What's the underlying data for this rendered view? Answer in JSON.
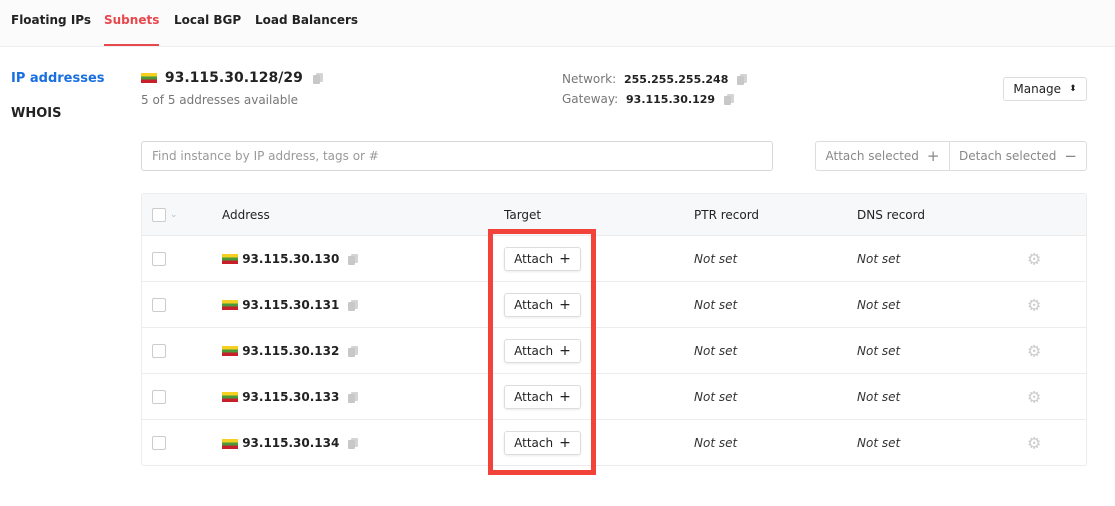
{
  "tabs": [
    {
      "label": "Floating IPs"
    },
    {
      "label": "Subnets",
      "active": true
    },
    {
      "label": "Local BGP"
    },
    {
      "label": "Load Balancers"
    }
  ],
  "sidebar": {
    "items": [
      {
        "label": "IP addresses",
        "active": true
      },
      {
        "label": "WHOIS"
      }
    ]
  },
  "subnet": {
    "cidr": "93.115.30.128/29",
    "availability": "5 of 5 addresses available",
    "network_label": "Network:",
    "network": "255.255.255.248",
    "gateway_label": "Gateway:",
    "gateway": "93.115.30.129",
    "flag": "lithuania-flag"
  },
  "manage_label": "Manage",
  "search": {
    "placeholder": "Find instance by IP address, tags or #"
  },
  "actions": {
    "attach_selected": "Attach selected",
    "detach_selected": "Detach selected"
  },
  "table": {
    "headers": {
      "address": "Address",
      "target": "Target",
      "ptr": "PTR record",
      "dns": "DNS record"
    },
    "rows": [
      {
        "address": "93.115.30.130",
        "target": "Attach",
        "ptr": "Not set",
        "dns": "Not set"
      },
      {
        "address": "93.115.30.131",
        "target": "Attach",
        "ptr": "Not set",
        "dns": "Not set"
      },
      {
        "address": "93.115.30.132",
        "target": "Attach",
        "ptr": "Not set",
        "dns": "Not set"
      },
      {
        "address": "93.115.30.133",
        "target": "Attach",
        "ptr": "Not set",
        "dns": "Not set"
      },
      {
        "address": "93.115.30.134",
        "target": "Attach",
        "ptr": "Not set",
        "dns": "Not set"
      }
    ]
  },
  "colors": {
    "accent": "#e8474c",
    "link": "#1a6fe0",
    "highlight": "#f2433a"
  }
}
